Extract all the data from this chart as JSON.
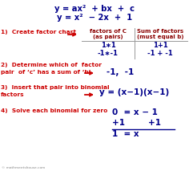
{
  "title1": "y = ax²  + bx  +  c",
  "title2": "y = x²  − 2x  +  1",
  "step1_label": "1)  Create factor chart",
  "step2_label1": "2)  Determine which of  factor",
  "step2_label2": "pair  of ‘c’ has a sum of ‘b’",
  "step3_label1": "3)  Insert that pair into binomial",
  "step3_label2": "factors",
  "step4_label": "4)  Solve each binomial for zero",
  "table_col1_header1": "factors of C",
  "table_col1_header2": "(as pairs)",
  "table_col2_header1": "Sum of factors",
  "table_col2_header2": "(must equal b)",
  "table_row1_col1": "1∗1",
  "table_row1_col2": "1+1",
  "table_row2_col1": "-1∗-1",
  "table_row2_col2": "-1 + -1",
  "step2_result": "-1,  -1",
  "step3_result": "y = (x−1)(x−1)",
  "step4_line1": "0  = x − 1",
  "step4_line2": "+1        +1",
  "step4_line3": "1  = x",
  "watermark": "© mathmeetshouse.com",
  "bg_color": "#ffffff",
  "title_color": "#00008B",
  "label_color": "#CC0000",
  "result_color": "#00008B",
  "table_header_color": "#8B0000",
  "table_data_color": "#00008B",
  "arrow_color": "#CC0000",
  "line_color": "#999999"
}
